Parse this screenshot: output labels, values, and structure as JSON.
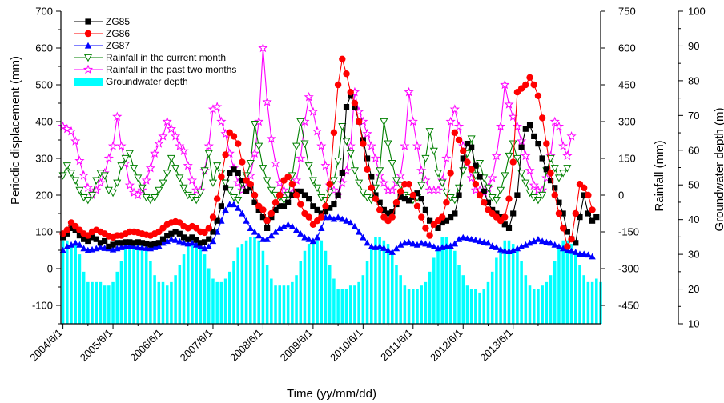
{
  "chart_data": {
    "type": "line",
    "xlabel": "Time (yy/mm/dd)",
    "x_tick_labels": [
      "2004/6/1",
      "2005/6/1",
      "2006/6/1",
      "2007/6/1",
      "2008/6/1",
      "2009/6/1",
      "2010/6/1",
      "2011/6/1",
      "2012/6/1",
      "2013/6/1"
    ],
    "start_month": "2004/6/1",
    "axes": {
      "displacement": {
        "label": "Periodic displacement (mm)",
        "range": [
          -150,
          700
        ],
        "ticks": [
          -100,
          0,
          100,
          200,
          300,
          400,
          500,
          600,
          700
        ]
      },
      "rainfall": {
        "label": "Rainfall (mm)",
        "range": [
          -525,
          750
        ],
        "ticks": [
          -450,
          -300,
          -150,
          0,
          150,
          300,
          450,
          600,
          750
        ]
      },
      "groundwater": {
        "label": "Groundwater depth (m)",
        "range": [
          10,
          100
        ],
        "ticks": [
          10,
          20,
          30,
          40,
          50,
          60,
          70,
          80,
          90,
          100
        ]
      }
    },
    "colors": {
      "ZG85": "#000000",
      "ZG86": "#ff0000",
      "ZG87": "#0000ff",
      "rain_current": "#008000",
      "rain_two": "#ff00ff",
      "groundwater": "#00ffff"
    },
    "series": [
      {
        "name": "ZG85",
        "axis": "displacement",
        "marker": "square",
        "values": [
          85,
          95,
          110,
          105,
          90,
          80,
          75,
          85,
          80,
          70,
          75,
          60,
          65,
          70,
          70,
          72,
          72,
          70,
          72,
          70,
          68,
          65,
          68,
          70,
          80,
          90,
          95,
          100,
          95,
          85,
          80,
          85,
          78,
          70,
          72,
          80,
          100,
          130,
          170,
          220,
          260,
          270,
          260,
          240,
          210,
          220,
          180,
          160,
          140,
          110,
          140,
          160,
          170,
          170,
          180,
          200,
          210,
          210,
          200,
          190,
          170,
          160,
          150,
          155,
          165,
          175,
          200,
          260,
          440,
          470,
          440,
          400,
          350,
          300,
          250,
          200,
          180,
          160,
          150,
          155,
          175,
          195,
          190,
          185,
          195,
          205,
          190,
          160,
          130,
          120,
          110,
          125,
          130,
          140,
          150,
          200,
          300,
          340,
          330,
          280,
          250,
          210,
          180,
          160,
          150,
          140,
          120,
          110,
          150,
          200,
          330,
          380,
          390,
          360,
          340,
          300,
          270,
          240,
          220,
          180,
          150,
          100,
          80,
          70,
          140,
          200,
          150,
          130,
          140
        ]
      },
      {
        "name": "ZG86",
        "axis": "displacement",
        "marker": "circle",
        "values": [
          95,
          105,
          125,
          115,
          105,
          95,
          90,
          100,
          105,
          100,
          95,
          88,
          85,
          90,
          90,
          95,
          100,
          100,
          98,
          95,
          92,
          90,
          95,
          100,
          110,
          120,
          125,
          128,
          125,
          115,
          110,
          115,
          110,
          100,
          98,
          110,
          140,
          190,
          250,
          310,
          370,
          360,
          340,
          290,
          240,
          230,
          200,
          170,
          160,
          130,
          150,
          180,
          200,
          240,
          250,
          230,
          200,
          175,
          150,
          140,
          120,
          130,
          140,
          170,
          230,
          370,
          500,
          570,
          530,
          480,
          450,
          400,
          340,
          270,
          220,
          190,
          160,
          140,
          130,
          140,
          180,
          210,
          230,
          230,
          200,
          170,
          140,
          110,
          90,
          120,
          130,
          140,
          180,
          260,
          370,
          350,
          320,
          290,
          270,
          230,
          200,
          180,
          160,
          150,
          140,
          130,
          140,
          190,
          290,
          480,
          490,
          500,
          520,
          500,
          470,
          410,
          340,
          260,
          200,
          150,
          110,
          60,
          80,
          150,
          230,
          220,
          200,
          160
        ]
      },
      {
        "name": "ZG87",
        "axis": "displacement",
        "marker": "triangle",
        "values": [
          50,
          60,
          65,
          70,
          65,
          55,
          50,
          52,
          55,
          58,
          56,
          55,
          52,
          55,
          58,
          60,
          62,
          60,
          58,
          57,
          56,
          55,
          58,
          62,
          70,
          75,
          80,
          78,
          74,
          70,
          68,
          70,
          65,
          60,
          55,
          60,
          75,
          100,
          130,
          160,
          175,
          175,
          165,
          150,
          130,
          110,
          100,
          90,
          80,
          80,
          90,
          100,
          110,
          115,
          120,
          115,
          105,
          95,
          85,
          80,
          75,
          85,
          110,
          140,
          140,
          135,
          140,
          135,
          130,
          125,
          115,
          100,
          85,
          70,
          60,
          58,
          60,
          56,
          50,
          45,
          55,
          65,
          70,
          72,
          68,
          65,
          70,
          68,
          65,
          60,
          55,
          58,
          60,
          62,
          68,
          80,
          85,
          82,
          80,
          78,
          75,
          72,
          70,
          62,
          58,
          52,
          48,
          47,
          50,
          55,
          60,
          65,
          70,
          75,
          80,
          75,
          72,
          70,
          65,
          60,
          55,
          50,
          48,
          45,
          40,
          40,
          38,
          33
        ]
      },
      {
        "name": "Rainfall in the current month",
        "axis": "rainfall",
        "marker": "triangle-down",
        "values": [
          80,
          120,
          90,
          60,
          20,
          -10,
          -20,
          0,
          60,
          90,
          80,
          20,
          10,
          50,
          120,
          150,
          170,
          110,
          70,
          30,
          -10,
          -20,
          -10,
          20,
          50,
          90,
          150,
          110,
          70,
          30,
          0,
          -10,
          -20,
          10,
          100,
          170,
          50,
          120,
          90,
          50,
          20,
          -10,
          -20,
          50,
          80,
          130,
          290,
          200,
          110,
          60,
          20,
          0,
          -10,
          -20,
          0,
          80,
          200,
          300,
          210,
          120,
          60,
          30,
          -10,
          -20,
          10,
          60,
          140,
          280,
          220,
          170,
          100,
          50,
          10,
          -10,
          -20,
          30,
          100,
          300,
          210,
          130,
          60,
          40,
          0,
          -10,
          -20,
          -10,
          40,
          150,
          260,
          180,
          90,
          50,
          10,
          -10,
          -20,
          30,
          100,
          170,
          230,
          80,
          130,
          70,
          30,
          -10,
          -20,
          20,
          80,
          160,
          210,
          150,
          90,
          50,
          10,
          -10,
          -20,
          0,
          100,
          150,
          110,
          70,
          90,
          110
        ]
      },
      {
        "name": "Rainfall in the past two months",
        "axis": "rainfall",
        "marker": "star",
        "values": [
          280,
          270,
          260,
          220,
          140,
          80,
          30,
          0,
          20,
          50,
          90,
          150,
          200,
          320,
          200,
          130,
          40,
          10,
          0,
          20,
          60,
          110,
          170,
          210,
          240,
          300,
          270,
          240,
          200,
          180,
          120,
          60,
          20,
          20,
          100,
          200,
          350,
          360,
          300,
          250,
          170,
          110,
          50,
          20,
          30,
          80,
          170,
          300,
          600,
          380,
          230,
          130,
          50,
          20,
          0,
          10,
          60,
          150,
          300,
          400,
          340,
          260,
          200,
          120,
          40,
          20,
          0,
          50,
          100,
          200,
          420,
          340,
          300,
          250,
          200,
          150,
          80,
          50,
          20,
          20,
          50,
          80,
          200,
          420,
          300,
          200,
          100,
          60,
          20,
          20,
          20,
          60,
          150,
          300,
          350,
          280,
          200,
          130,
          70,
          20,
          20,
          10,
          30,
          70,
          160,
          280,
          450,
          370,
          320,
          280,
          220,
          160,
          100,
          40,
          20,
          20,
          70,
          160,
          300,
          280,
          200,
          160,
          240
        ]
      },
      {
        "name": "Groundwater depth",
        "axis": "groundwater",
        "type": "bar",
        "values": [
          34,
          34,
          33,
          33,
          30,
          25,
          22,
          22,
          22,
          22,
          21,
          21,
          22,
          25,
          28,
          32,
          33,
          34,
          34,
          33,
          31,
          28,
          24,
          22,
          22,
          21,
          22,
          24,
          27,
          30,
          33,
          34,
          34,
          33,
          30,
          26,
          23,
          22,
          22,
          23,
          25,
          28,
          32,
          33,
          34,
          35,
          35,
          34,
          31,
          27,
          23,
          21,
          21,
          21,
          21,
          22,
          24,
          28,
          31,
          33,
          34,
          34,
          34,
          31,
          27,
          23,
          20,
          20,
          20,
          21,
          21,
          22,
          24,
          28,
          32,
          35,
          35,
          34,
          33,
          30,
          27,
          24,
          21,
          20,
          20,
          20,
          21,
          22,
          25,
          29,
          32,
          35,
          35,
          33,
          31,
          27,
          24,
          21,
          20,
          20,
          19,
          20,
          22,
          25,
          29,
          32,
          34,
          34,
          33,
          31,
          28,
          24,
          21,
          20,
          20,
          21,
          22,
          24,
          28,
          32,
          34,
          34,
          33,
          30,
          27,
          24,
          22,
          22,
          23,
          22
        ]
      }
    ]
  }
}
